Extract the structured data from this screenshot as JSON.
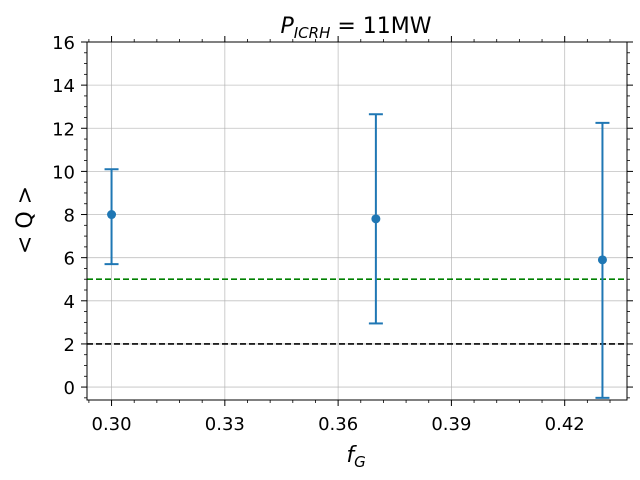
{
  "chart_data": {
    "type": "scatter",
    "title_main": "P",
    "title_sub": "ICRH",
    "title_rest": " = 11MW",
    "xlabel_main": "f",
    "xlabel_sub": "G",
    "ylabel": "< Q >",
    "xlim": [
      0.2935,
      0.4365
    ],
    "ylim": [
      -0.6,
      16
    ],
    "xticks": [
      0.3,
      0.33,
      0.36,
      0.39,
      0.42
    ],
    "xtick_labels": [
      "0.30",
      "0.33",
      "0.36",
      "0.39",
      "0.42"
    ],
    "yticks": [
      0,
      2,
      4,
      6,
      8,
      10,
      12,
      14,
      16
    ],
    "ytick_labels": [
      "0",
      "2",
      "4",
      "6",
      "8",
      "10",
      "12",
      "14",
      "16"
    ],
    "grid": true,
    "series": [
      {
        "x": [
          0.3,
          0.37,
          0.43
        ],
        "y": [
          8.0,
          7.8,
          5.9
        ],
        "y_low": [
          5.7,
          2.95,
          -0.5
        ],
        "y_high": [
          10.1,
          12.65,
          12.25
        ],
        "color": "#1f77b4"
      }
    ],
    "hlines": [
      {
        "y": 5,
        "color": "#008000",
        "style": "dashed"
      },
      {
        "y": 2,
        "color": "#000000",
        "style": "dashed"
      }
    ]
  }
}
